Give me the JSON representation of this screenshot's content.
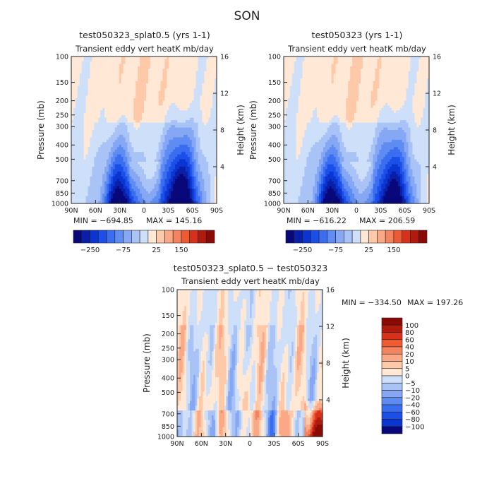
{
  "figure_title": "SON",
  "colors": {
    "blue": [
      "#08087a",
      "#0a1fa8",
      "#0b35d0",
      "#1b4fe8",
      "#3a6df0",
      "#5f8cf2",
      "#86a8f4",
      "#a9c3f6",
      "#cddff9",
      "#ffe8d6",
      "#fdc9a8",
      "#fba887",
      "#f4835f",
      "#ee5b33",
      "#d7311b",
      "#b01b0e",
      "#8a0a05"
    ],
    "neutral_pos": "#ffe8d6",
    "neutral_neg": "#cddff9"
  },
  "chart_data": [
    {
      "type": "heatmap",
      "panel": "top-left",
      "title": "test050323_splat0.5 (yrs 1-1)",
      "subtitle": "Transient eddy vert heatK mb/day",
      "ylabel": "Pressure (mb)",
      "y2label": "Height (km)",
      "x_ticks": [
        "90N",
        "60N",
        "30N",
        "0",
        "30S",
        "60S",
        "90S"
      ],
      "y_ticks": [
        "100",
        "150",
        "200",
        "250",
        "300",
        "400",
        "500",
        "700",
        "850",
        "1000"
      ],
      "y2_ticks": [
        "16",
        "12",
        "8",
        "4"
      ],
      "min_label": "MIN = −694.85",
      "max_label": "MAX = 145.16",
      "colorbar_labels": [
        "−250",
        "−75",
        "25",
        "150"
      ],
      "deep_south": 1.0
    },
    {
      "type": "heatmap",
      "panel": "top-right",
      "title": "test050323 (yrs 1-1)",
      "subtitle": "Transient eddy vert heatK mb/day",
      "ylabel": "Pressure (mb)",
      "y2label": "Height (km)",
      "x_ticks": [
        "90N",
        "60N",
        "30N",
        "0",
        "30S",
        "60S",
        "90S"
      ],
      "y_ticks": [
        "100",
        "150",
        "200",
        "250",
        "300",
        "400",
        "500",
        "700",
        "850",
        "1000"
      ],
      "y2_ticks": [
        "16",
        "12",
        "8",
        "4"
      ],
      "min_label": "MIN = −616.22",
      "max_label": "MAX = 206.59",
      "colorbar_labels": [
        "−250",
        "−75",
        "25",
        "150"
      ],
      "deep_south": 0.9
    },
    {
      "type": "heatmap",
      "panel": "bottom-difference",
      "title": "test050323_splat0.5 − test050323",
      "subtitle": "Transient eddy vert heatK mb/day",
      "ylabel": "Pressure (mb)",
      "y2label": "Height (km)",
      "x_ticks": [
        "90N",
        "60N",
        "30N",
        "0",
        "30S",
        "60S",
        "90S"
      ],
      "y_ticks": [
        "100",
        "150",
        "200",
        "250",
        "300",
        "400",
        "500",
        "700",
        "850",
        "1000"
      ],
      "y2_ticks": [
        "16",
        "12",
        "8",
        "4"
      ],
      "min_label": "MIN = −334.50",
      "max_label": "MAX = 197.26",
      "colorbar_labels": [
        "100",
        "80",
        "60",
        "40",
        "20",
        "10",
        "5",
        "0",
        "−5",
        "−10",
        "−20",
        "−40",
        "−60",
        "−80",
        "−100"
      ]
    }
  ]
}
